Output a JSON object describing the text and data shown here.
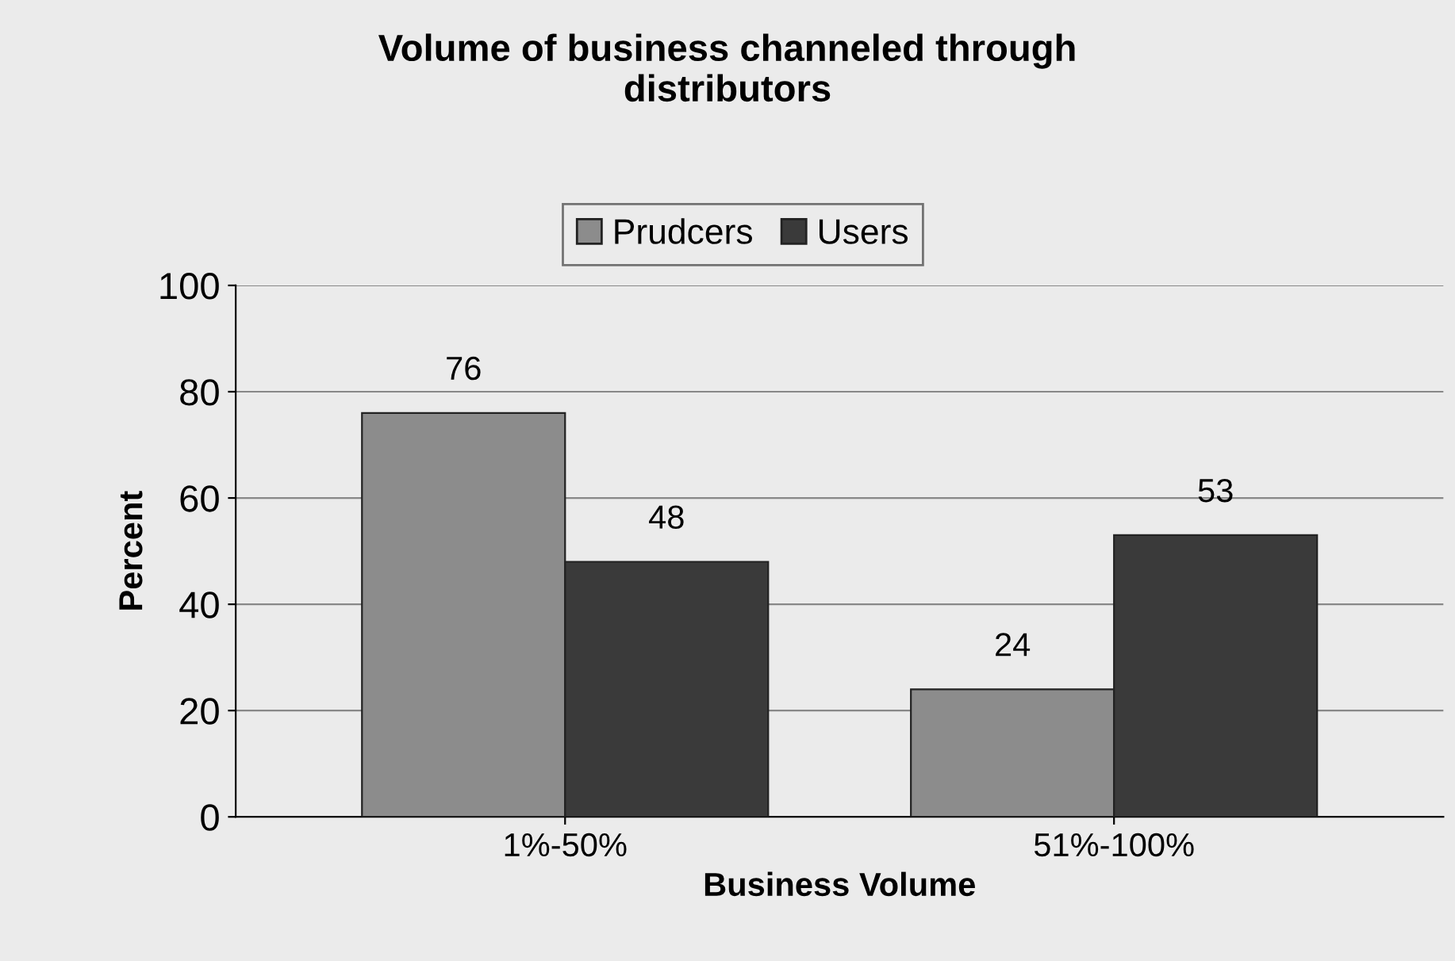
{
  "chart_data": {
    "type": "bar",
    "title": "Volume of business channeled through\ndistributors",
    "xlabel": "Business Volume",
    "ylabel": "Percent",
    "categories": [
      "1%-50%",
      "51%-100%"
    ],
    "series": [
      {
        "name": "Prudcers",
        "color": "#8c8c8c",
        "values": [
          76,
          24
        ]
      },
      {
        "name": "Users",
        "color": "#3a3a3a",
        "values": [
          48,
          53
        ]
      }
    ],
    "ylim": [
      0,
      100
    ],
    "yticks": [
      0,
      20,
      40,
      60,
      80,
      100
    ],
    "grid": "y",
    "legend": "top",
    "data_labels": true
  }
}
